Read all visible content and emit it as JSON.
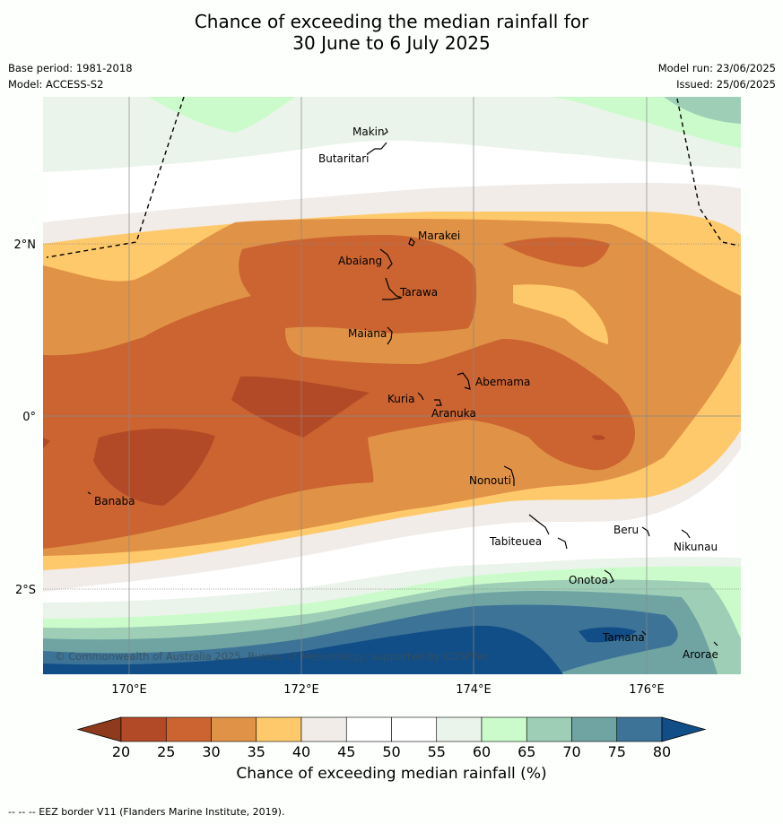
{
  "title": {
    "line1": "Chance of exceeding the median rainfall for",
    "line2": "30 June to 6 July 2025"
  },
  "meta": {
    "base_period": "Base period: 1981-2018",
    "model": "Model: ACCESS-S2",
    "model_run": "Model run: 23/06/2025",
    "issued": "Issued: 25/06/2025"
  },
  "map": {
    "x_ticks": [
      "170°E",
      "172°E",
      "174°E",
      "176°E"
    ],
    "y_ticks": [
      "2°N",
      "0°",
      "2°S"
    ],
    "copyright": "© Commonwealth of Australia 2025, Bureau of Meteorology, supported by COSPPac",
    "places": [
      "Makin",
      "Butaritari",
      "Marakei",
      "Abaiang",
      "Tarawa",
      "Maiana",
      "Abemama",
      "Kuria",
      "Aranuka",
      "Banaba",
      "Nonouti",
      "Tabiteuea",
      "Beru",
      "Nikunau",
      "Onotoa",
      "Tamana",
      "Arorae"
    ]
  },
  "colorbar": {
    "ticks": [
      "20",
      "25",
      "30",
      "35",
      "40",
      "45",
      "50",
      "55",
      "60",
      "65",
      "70",
      "75",
      "80"
    ],
    "title": "Chance of exceeding median rainfall (%)",
    "colors": [
      "#8e3a1c",
      "#b34a27",
      "#cb6431",
      "#e09246",
      "#fec96a",
      "#f1ece8",
      "#ffffff",
      "#ffffff",
      "#eaf4ea",
      "#cbfbcb",
      "#9ecfb6",
      "#6fa4a3",
      "#3d7396",
      "#114d87"
    ]
  },
  "footnote": "--  --  -- EEZ border V11 (Flanders Marine Institute, 2019)."
}
